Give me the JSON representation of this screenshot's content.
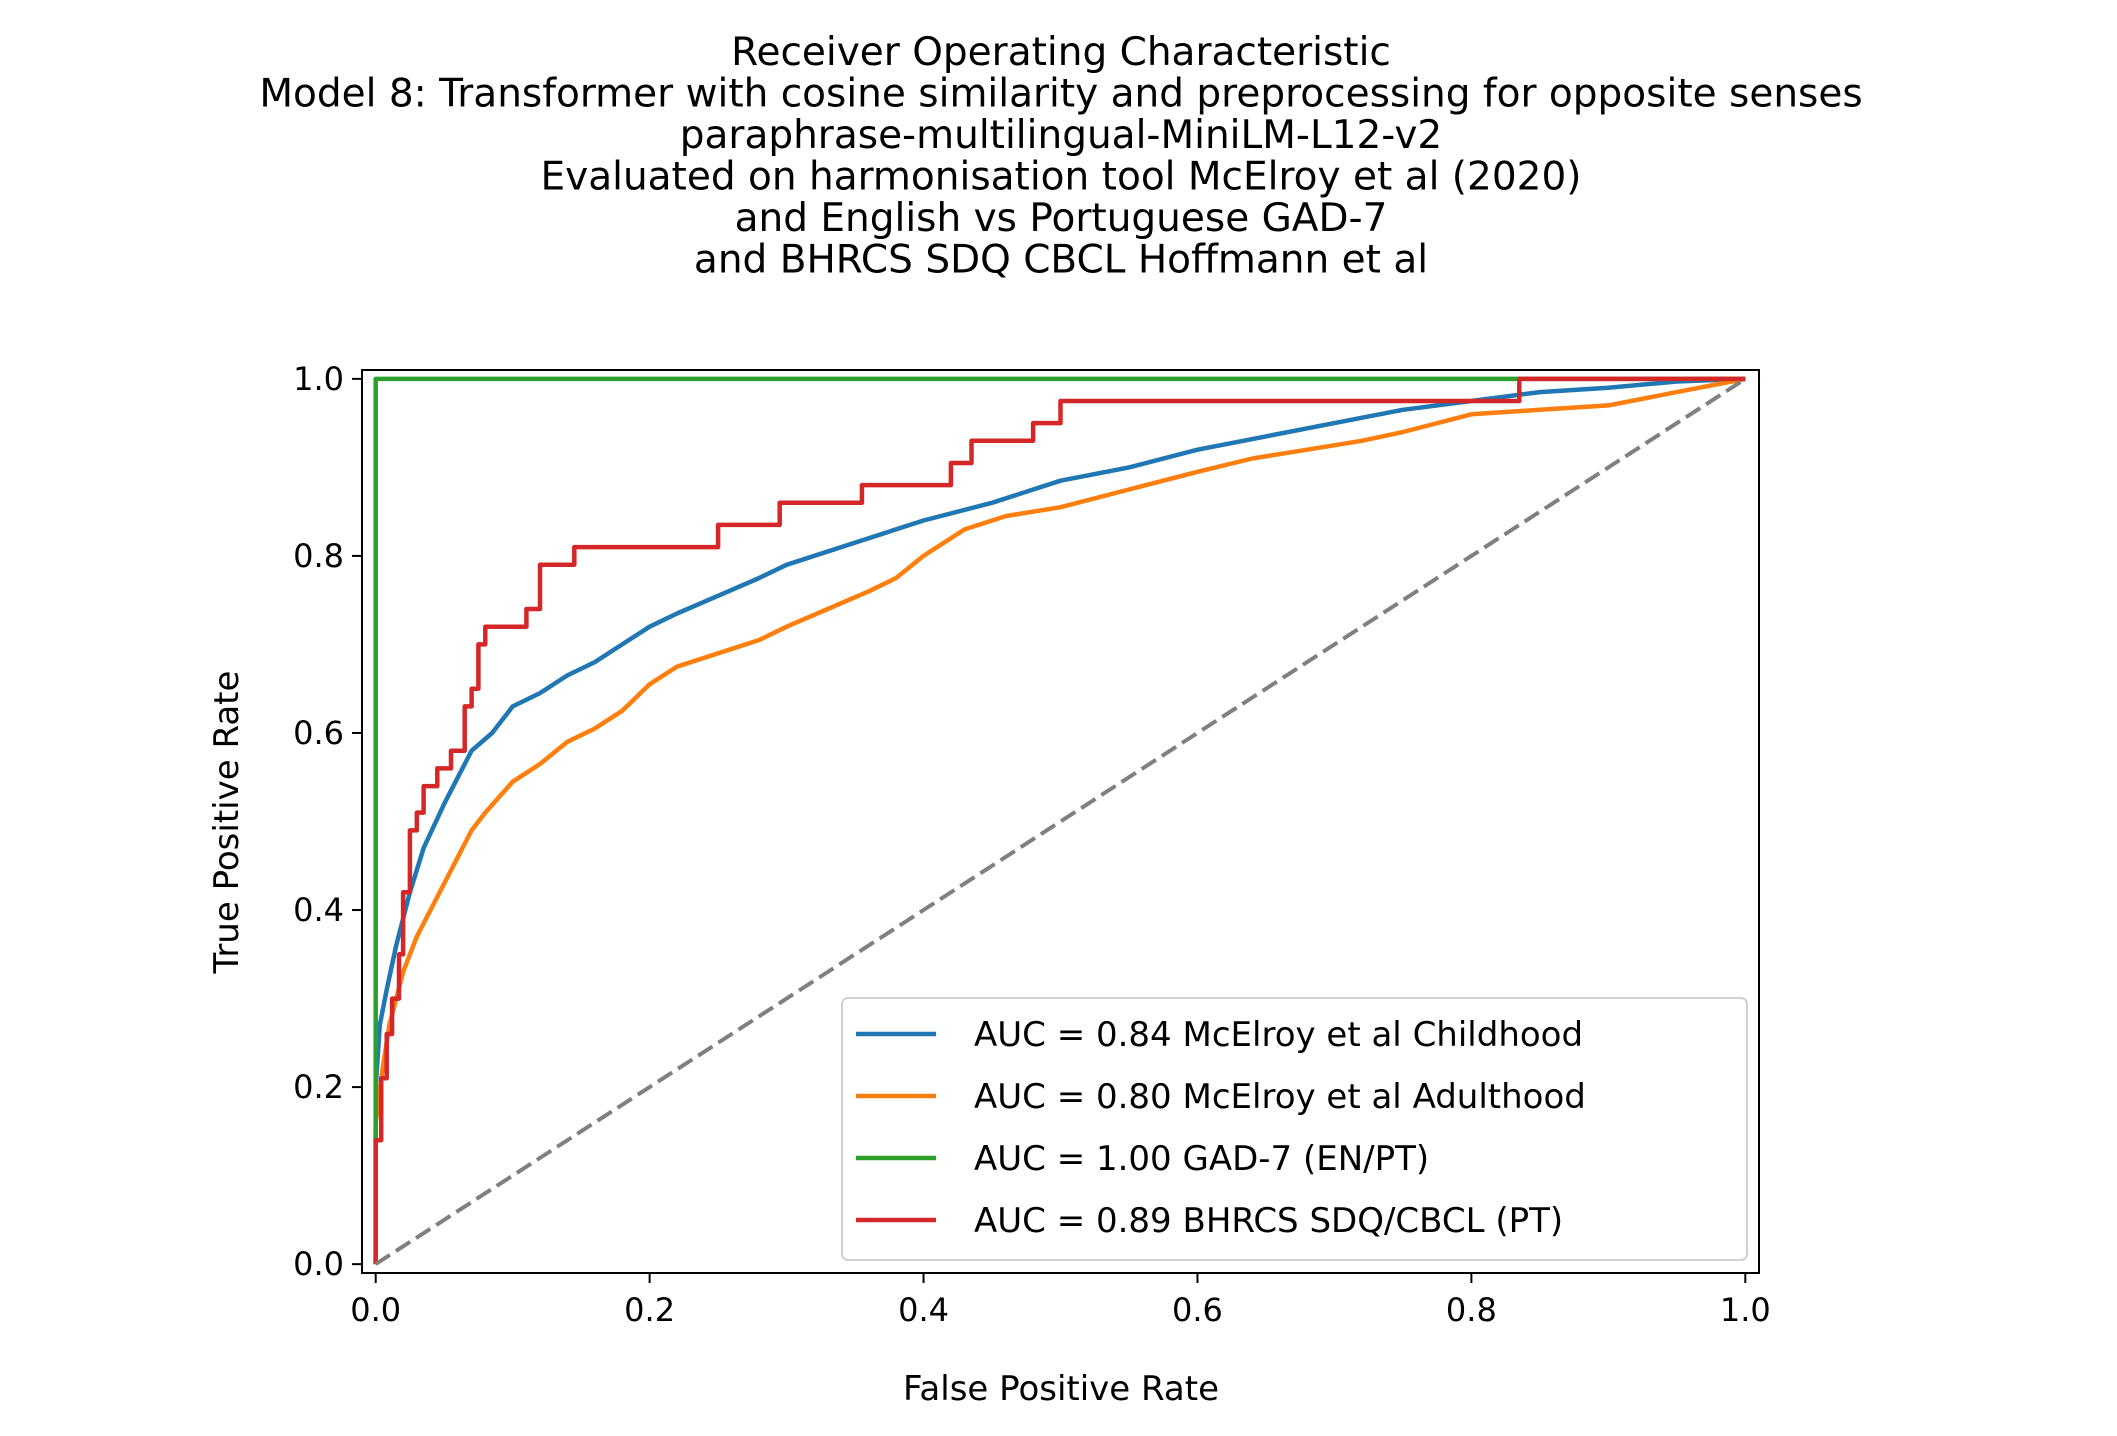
{
  "chart_data": {
    "type": "line",
    "title_lines": [
      "Receiver Operating Characteristic",
      "Model 8: Transformer with cosine similarity and preprocessing for opposite senses",
      "paraphrase-multilingual-MiniLM-L12-v2",
      "Evaluated on harmonisation tool McElroy et al (2020)",
      "and English vs Portuguese GAD-7",
      "and BHRCS SDQ CBCL Hoffmann et al"
    ],
    "xlabel": "False Positive Rate",
    "ylabel": "True Positive Rate",
    "xlim": [
      -0.01,
      1.01
    ],
    "ylim": [
      -0.01,
      1.01
    ],
    "xticks": [
      0.0,
      0.2,
      0.4,
      0.6,
      0.8,
      1.0
    ],
    "xtick_labels": [
      "0.0",
      "0.2",
      "0.4",
      "0.6",
      "0.8",
      "1.0"
    ],
    "yticks": [
      0.0,
      0.2,
      0.4,
      0.6,
      0.8,
      1.0
    ],
    "ytick_labels": [
      "0.0",
      "0.2",
      "0.4",
      "0.6",
      "0.8",
      "1.0"
    ],
    "grid": false,
    "legend_position": "lower-right",
    "series": [
      {
        "name": "AUC = 0.84 McElroy et al Childhood",
        "color": "#1f77b4",
        "style": "curve",
        "points": [
          [
            0,
            0
          ],
          [
            0,
            0.2
          ],
          [
            0.003,
            0.27
          ],
          [
            0.008,
            0.31
          ],
          [
            0.015,
            0.36
          ],
          [
            0.025,
            0.42
          ],
          [
            0.035,
            0.47
          ],
          [
            0.05,
            0.52
          ],
          [
            0.06,
            0.55
          ],
          [
            0.07,
            0.58
          ],
          [
            0.085,
            0.6
          ],
          [
            0.1,
            0.63
          ],
          [
            0.12,
            0.645
          ],
          [
            0.14,
            0.665
          ],
          [
            0.16,
            0.68
          ],
          [
            0.18,
            0.7
          ],
          [
            0.2,
            0.72
          ],
          [
            0.22,
            0.735
          ],
          [
            0.25,
            0.755
          ],
          [
            0.28,
            0.775
          ],
          [
            0.3,
            0.79
          ],
          [
            0.35,
            0.815
          ],
          [
            0.4,
            0.84
          ],
          [
            0.45,
            0.86
          ],
          [
            0.5,
            0.885
          ],
          [
            0.55,
            0.9
          ],
          [
            0.6,
            0.92
          ],
          [
            0.65,
            0.935
          ],
          [
            0.7,
            0.95
          ],
          [
            0.75,
            0.965
          ],
          [
            0.8,
            0.975
          ],
          [
            0.85,
            0.985
          ],
          [
            0.9,
            0.99
          ],
          [
            0.95,
            0.997
          ],
          [
            1,
            1
          ]
        ]
      },
      {
        "name": "AUC = 0.80 McElroy et al Adulthood",
        "color": "#ff7f0e",
        "style": "curve",
        "points": [
          [
            0,
            0
          ],
          [
            0,
            0.16
          ],
          [
            0.005,
            0.22
          ],
          [
            0.01,
            0.27
          ],
          [
            0.02,
            0.33
          ],
          [
            0.03,
            0.37
          ],
          [
            0.04,
            0.4
          ],
          [
            0.05,
            0.43
          ],
          [
            0.06,
            0.46
          ],
          [
            0.07,
            0.49
          ],
          [
            0.08,
            0.51
          ],
          [
            0.1,
            0.545
          ],
          [
            0.12,
            0.565
          ],
          [
            0.14,
            0.59
          ],
          [
            0.16,
            0.605
          ],
          [
            0.18,
            0.625
          ],
          [
            0.2,
            0.655
          ],
          [
            0.22,
            0.675
          ],
          [
            0.25,
            0.69
          ],
          [
            0.28,
            0.705
          ],
          [
            0.3,
            0.72
          ],
          [
            0.33,
            0.74
          ],
          [
            0.36,
            0.76
          ],
          [
            0.38,
            0.775
          ],
          [
            0.4,
            0.8
          ],
          [
            0.43,
            0.83
          ],
          [
            0.46,
            0.845
          ],
          [
            0.5,
            0.855
          ],
          [
            0.55,
            0.875
          ],
          [
            0.6,
            0.895
          ],
          [
            0.64,
            0.91
          ],
          [
            0.68,
            0.92
          ],
          [
            0.72,
            0.93
          ],
          [
            0.75,
            0.94
          ],
          [
            0.8,
            0.96
          ],
          [
            0.85,
            0.965
          ],
          [
            0.9,
            0.97
          ],
          [
            0.95,
            0.985
          ],
          [
            1,
            1
          ]
        ]
      },
      {
        "name": "AUC = 1.00 GAD-7 (EN/PT)",
        "color": "#2ca02c",
        "style": "step",
        "points": [
          [
            0,
            0
          ],
          [
            0,
            1
          ],
          [
            1,
            1
          ]
        ]
      },
      {
        "name": "AUC = 0.89 BHRCS SDQ/CBCL (PT)",
        "color": "#d62728",
        "style": "step",
        "points": [
          [
            0,
            0
          ],
          [
            0,
            0.14
          ],
          [
            0.004,
            0.14
          ],
          [
            0.004,
            0.21
          ],
          [
            0.008,
            0.21
          ],
          [
            0.008,
            0.26
          ],
          [
            0.012,
            0.26
          ],
          [
            0.012,
            0.3
          ],
          [
            0.017,
            0.3
          ],
          [
            0.017,
            0.35
          ],
          [
            0.02,
            0.35
          ],
          [
            0.02,
            0.42
          ],
          [
            0.025,
            0.42
          ],
          [
            0.025,
            0.49
          ],
          [
            0.03,
            0.49
          ],
          [
            0.03,
            0.51
          ],
          [
            0.035,
            0.51
          ],
          [
            0.035,
            0.54
          ],
          [
            0.045,
            0.54
          ],
          [
            0.045,
            0.56
          ],
          [
            0.055,
            0.56
          ],
          [
            0.055,
            0.58
          ],
          [
            0.065,
            0.58
          ],
          [
            0.065,
            0.63
          ],
          [
            0.07,
            0.63
          ],
          [
            0.07,
            0.65
          ],
          [
            0.075,
            0.65
          ],
          [
            0.075,
            0.7
          ],
          [
            0.08,
            0.7
          ],
          [
            0.08,
            0.72
          ],
          [
            0.11,
            0.72
          ],
          [
            0.11,
            0.74
          ],
          [
            0.12,
            0.74
          ],
          [
            0.12,
            0.79
          ],
          [
            0.145,
            0.79
          ],
          [
            0.145,
            0.81
          ],
          [
            0.25,
            0.81
          ],
          [
            0.25,
            0.835
          ],
          [
            0.295,
            0.835
          ],
          [
            0.295,
            0.86
          ],
          [
            0.355,
            0.86
          ],
          [
            0.355,
            0.88
          ],
          [
            0.42,
            0.88
          ],
          [
            0.42,
            0.905
          ],
          [
            0.435,
            0.905
          ],
          [
            0.435,
            0.93
          ],
          [
            0.48,
            0.93
          ],
          [
            0.48,
            0.95
          ],
          [
            0.5,
            0.95
          ],
          [
            0.5,
            0.975
          ],
          [
            0.835,
            0.975
          ],
          [
            0.835,
            1
          ],
          [
            1,
            1
          ]
        ]
      },
      {
        "name": "",
        "color": "#808080",
        "style": "dashed",
        "points": [
          [
            0,
            0
          ],
          [
            1,
            1
          ]
        ]
      }
    ]
  }
}
